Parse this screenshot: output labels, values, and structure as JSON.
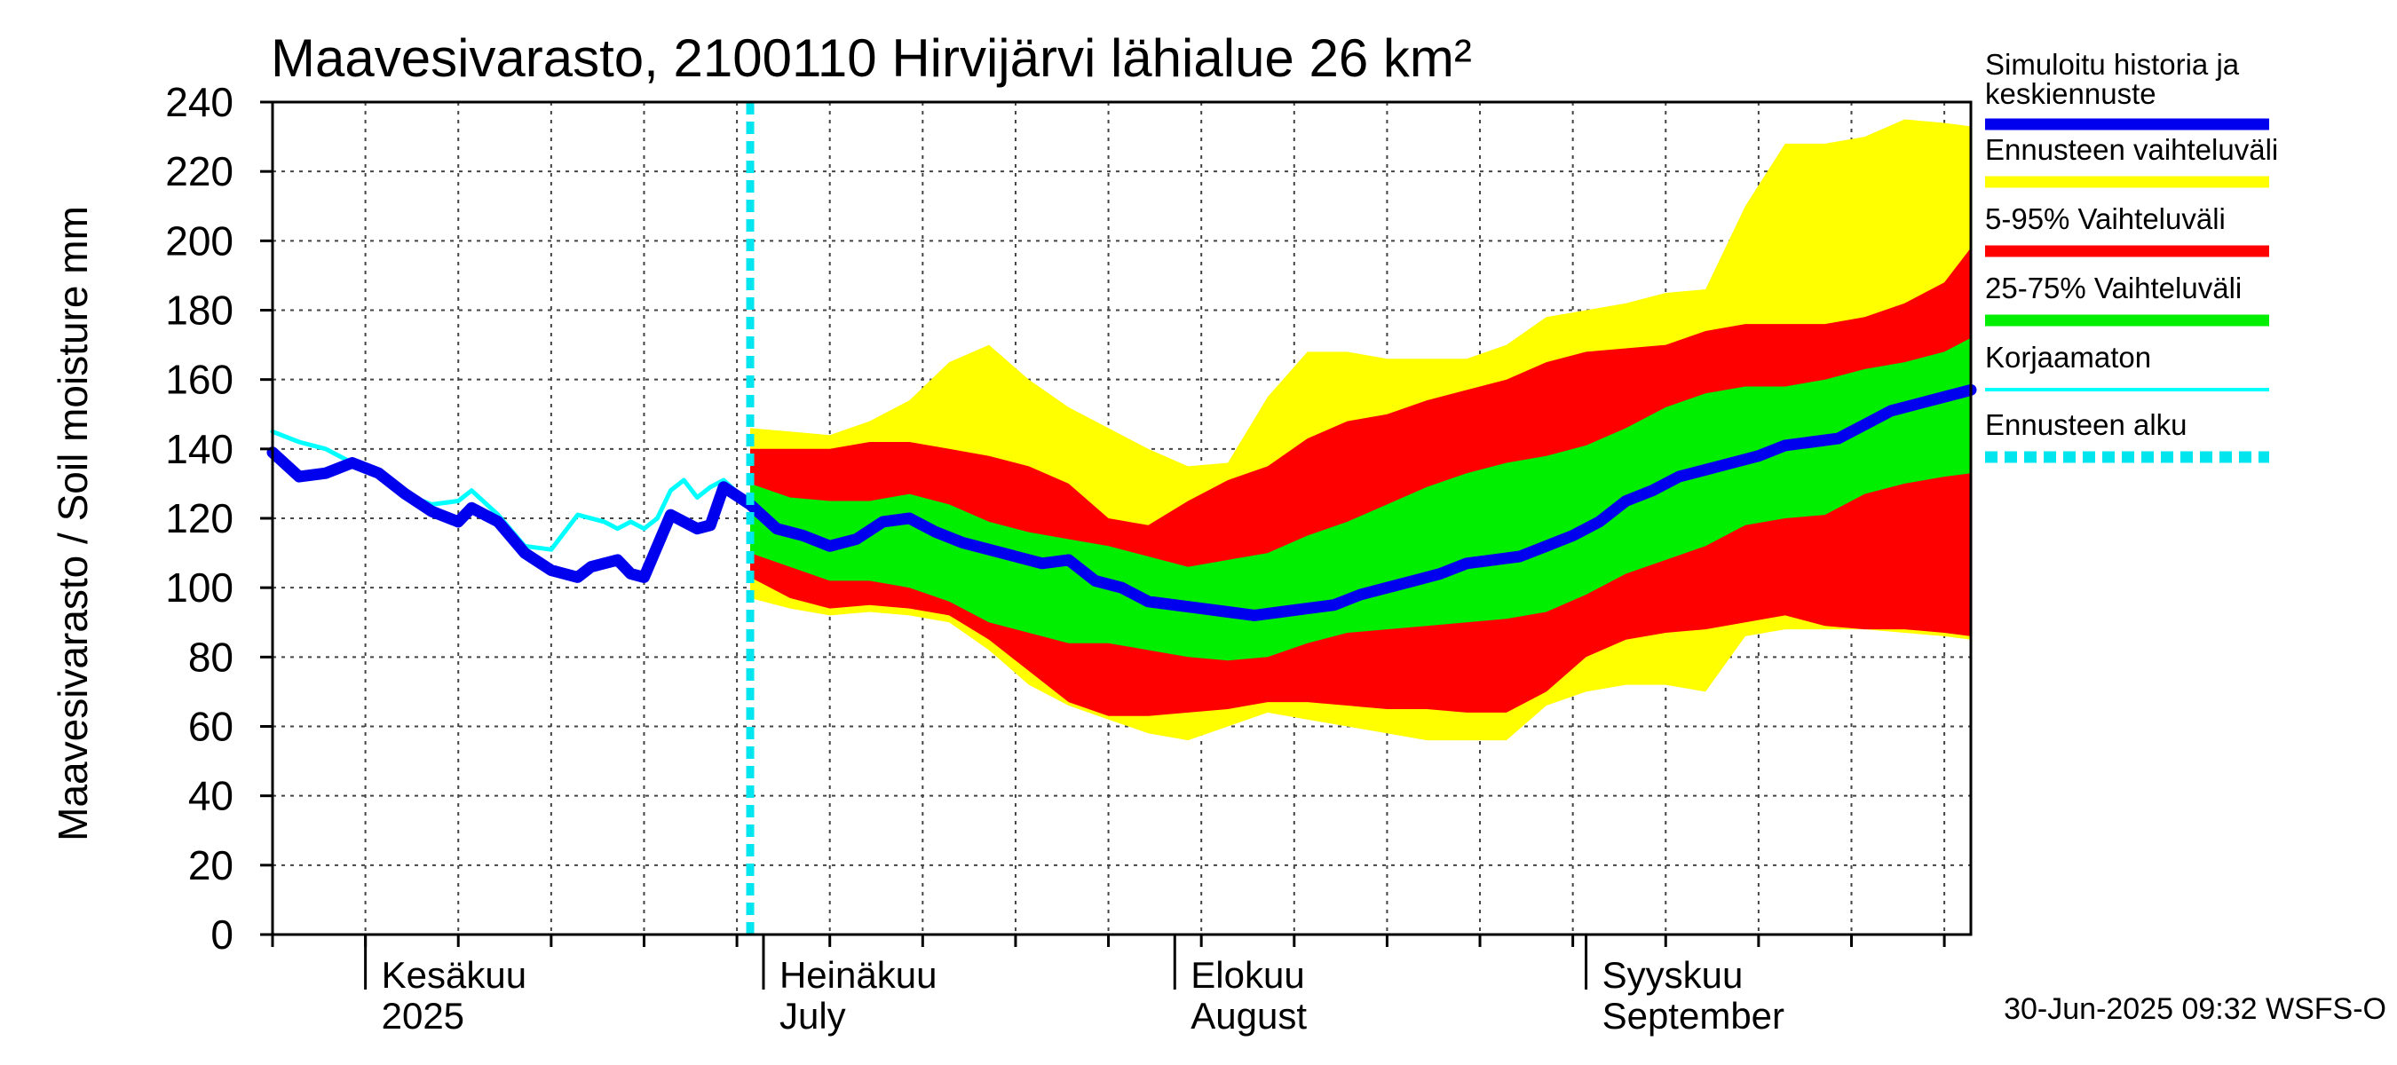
{
  "chart_data": {
    "type": "area",
    "title": "Maavesivarasto, 2100110 Hirvijärvi lähialue 26 km²",
    "ylabel": "Maavesivarasto / Soil moisture   mm",
    "ylim": [
      0,
      240
    ],
    "yticks": [
      0,
      20,
      40,
      60,
      80,
      100,
      120,
      140,
      160,
      180,
      200,
      220,
      240
    ],
    "xlim": [
      "2025-05-25",
      "2025-09-30"
    ],
    "grid": true,
    "forecast_start": "2025-06-30",
    "months": [
      {
        "date": "2025-06-01",
        "fi": "Kesäkuu",
        "en": "2025"
      },
      {
        "date": "2025-07-01",
        "fi": "Heinäkuu",
        "en": "July"
      },
      {
        "date": "2025-08-01",
        "fi": "Elokuu",
        "en": "August"
      },
      {
        "date": "2025-09-01",
        "fi": "Syyskuu",
        "en": "September"
      }
    ],
    "legend": [
      {
        "label": "Simuloitu historia ja keskiennuste",
        "color": "#0000ee",
        "style": "thick"
      },
      {
        "label": "Ennusteen vaihteluväli",
        "color": "#ffff00",
        "style": "thick"
      },
      {
        "label": "5-95% Vaihteluväli",
        "color": "#ff0000",
        "style": "thick"
      },
      {
        "label": "25-75% Vaihteluväli",
        "color": "#00ee00",
        "style": "thick"
      },
      {
        "label": "Korjaamaton",
        "color": "#00ffff",
        "style": "thin"
      },
      {
        "label": "Ennusteen alku",
        "color": "#00e5ee",
        "style": "dashed"
      }
    ],
    "series": [
      {
        "name": "Simuloitu historia ja keskiennuste",
        "color": "#0000ee",
        "points": [
          [
            "2025-05-25",
            139
          ],
          [
            "2025-05-27",
            132
          ],
          [
            "2025-05-29",
            133
          ],
          [
            "2025-05-31",
            136
          ],
          [
            "2025-06-02",
            133
          ],
          [
            "2025-06-04",
            127
          ],
          [
            "2025-06-06",
            122
          ],
          [
            "2025-06-08",
            119
          ],
          [
            "2025-06-09",
            123
          ],
          [
            "2025-06-11",
            119
          ],
          [
            "2025-06-13",
            110
          ],
          [
            "2025-06-15",
            105
          ],
          [
            "2025-06-17",
            103
          ],
          [
            "2025-06-18",
            106
          ],
          [
            "2025-06-20",
            108
          ],
          [
            "2025-06-21",
            104
          ],
          [
            "2025-06-22",
            103
          ],
          [
            "2025-06-24",
            121
          ],
          [
            "2025-06-26",
            117
          ],
          [
            "2025-06-27",
            118
          ],
          [
            "2025-06-28",
            129
          ],
          [
            "2025-06-30",
            124
          ],
          [
            "2025-07-02",
            117
          ],
          [
            "2025-07-04",
            115
          ],
          [
            "2025-07-06",
            112
          ],
          [
            "2025-07-08",
            114
          ],
          [
            "2025-07-10",
            119
          ],
          [
            "2025-07-12",
            120
          ],
          [
            "2025-07-14",
            116
          ],
          [
            "2025-07-16",
            113
          ],
          [
            "2025-07-18",
            111
          ],
          [
            "2025-07-20",
            109
          ],
          [
            "2025-07-22",
            107
          ],
          [
            "2025-07-24",
            108
          ],
          [
            "2025-07-26",
            102
          ],
          [
            "2025-07-28",
            100
          ],
          [
            "2025-07-30",
            96
          ],
          [
            "2025-08-01",
            95
          ],
          [
            "2025-08-03",
            94
          ],
          [
            "2025-08-05",
            93
          ],
          [
            "2025-08-07",
            92
          ],
          [
            "2025-08-09",
            93
          ],
          [
            "2025-08-11",
            94
          ],
          [
            "2025-08-13",
            95
          ],
          [
            "2025-08-15",
            98
          ],
          [
            "2025-08-17",
            100
          ],
          [
            "2025-08-19",
            102
          ],
          [
            "2025-08-21",
            104
          ],
          [
            "2025-08-23",
            107
          ],
          [
            "2025-08-25",
            108
          ],
          [
            "2025-08-27",
            109
          ],
          [
            "2025-08-29",
            112
          ],
          [
            "2025-08-31",
            115
          ],
          [
            "2025-09-02",
            119
          ],
          [
            "2025-09-04",
            125
          ],
          [
            "2025-09-06",
            128
          ],
          [
            "2025-09-08",
            132
          ],
          [
            "2025-09-10",
            134
          ],
          [
            "2025-09-12",
            136
          ],
          [
            "2025-09-14",
            138
          ],
          [
            "2025-09-16",
            141
          ],
          [
            "2025-09-18",
            142
          ],
          [
            "2025-09-20",
            143
          ],
          [
            "2025-09-22",
            147
          ],
          [
            "2025-09-24",
            151
          ],
          [
            "2025-09-26",
            153
          ],
          [
            "2025-09-28",
            155
          ],
          [
            "2025-09-30",
            157
          ]
        ]
      },
      {
        "name": "Korjaamaton",
        "color": "#00ffff",
        "points": [
          [
            "2025-05-25",
            145
          ],
          [
            "2025-05-27",
            142
          ],
          [
            "2025-05-29",
            140
          ],
          [
            "2025-05-31",
            136
          ],
          [
            "2025-06-02",
            133
          ],
          [
            "2025-06-04",
            127
          ],
          [
            "2025-06-06",
            124
          ],
          [
            "2025-06-08",
            125
          ],
          [
            "2025-06-09",
            128
          ],
          [
            "2025-06-11",
            121
          ],
          [
            "2025-06-13",
            112
          ],
          [
            "2025-06-15",
            111
          ],
          [
            "2025-06-17",
            121
          ],
          [
            "2025-06-19",
            119
          ],
          [
            "2025-06-20",
            117
          ],
          [
            "2025-06-21",
            119
          ],
          [
            "2025-06-22",
            117
          ],
          [
            "2025-06-23",
            120
          ],
          [
            "2025-06-24",
            128
          ],
          [
            "2025-06-25",
            131
          ],
          [
            "2025-06-26",
            126
          ],
          [
            "2025-06-27",
            129
          ],
          [
            "2025-06-28",
            131
          ],
          [
            "2025-06-30",
            124
          ]
        ]
      }
    ],
    "bands": [
      {
        "name": "Ennusteen vaihteluväli",
        "color": "#ffff00",
        "x": [
          "2025-06-30",
          "2025-07-03",
          "2025-07-06",
          "2025-07-09",
          "2025-07-12",
          "2025-07-15",
          "2025-07-18",
          "2025-07-21",
          "2025-07-24",
          "2025-07-27",
          "2025-07-30",
          "2025-08-02",
          "2025-08-05",
          "2025-08-08",
          "2025-08-11",
          "2025-08-14",
          "2025-08-17",
          "2025-08-20",
          "2025-08-23",
          "2025-08-26",
          "2025-08-29",
          "2025-09-01",
          "2025-09-04",
          "2025-09-07",
          "2025-09-10",
          "2025-09-13",
          "2025-09-16",
          "2025-09-19",
          "2025-09-22",
          "2025-09-25",
          "2025-09-28",
          "2025-09-30"
        ],
        "upper": [
          146,
          145,
          144,
          148,
          154,
          165,
          170,
          160,
          152,
          146,
          140,
          135,
          136,
          155,
          168,
          168,
          166,
          166,
          166,
          170,
          178,
          180,
          182,
          185,
          186,
          210,
          228,
          228,
          230,
          235,
          234,
          233
        ],
        "lower": [
          97,
          94,
          92,
          93,
          92,
          90,
          82,
          72,
          66,
          62,
          58,
          56,
          60,
          64,
          62,
          60,
          58,
          56,
          56,
          56,
          66,
          70,
          72,
          72,
          70,
          86,
          88,
          88,
          88,
          87,
          86,
          85
        ]
      },
      {
        "name": "5-95% Vaihteluväli",
        "color": "#ff0000",
        "x": [
          "2025-06-30",
          "2025-07-03",
          "2025-07-06",
          "2025-07-09",
          "2025-07-12",
          "2025-07-15",
          "2025-07-18",
          "2025-07-21",
          "2025-07-24",
          "2025-07-27",
          "2025-07-30",
          "2025-08-02",
          "2025-08-05",
          "2025-08-08",
          "2025-08-11",
          "2025-08-14",
          "2025-08-17",
          "2025-08-20",
          "2025-08-23",
          "2025-08-26",
          "2025-08-29",
          "2025-09-01",
          "2025-09-04",
          "2025-09-07",
          "2025-09-10",
          "2025-09-13",
          "2025-09-16",
          "2025-09-19",
          "2025-09-22",
          "2025-09-25",
          "2025-09-28",
          "2025-09-30"
        ],
        "upper": [
          140,
          140,
          140,
          142,
          142,
          140,
          138,
          135,
          130,
          120,
          118,
          125,
          131,
          135,
          143,
          148,
          150,
          154,
          157,
          160,
          165,
          168,
          169,
          170,
          174,
          176,
          176,
          176,
          178,
          182,
          188,
          198
        ],
        "lower": [
          103,
          97,
          94,
          95,
          94,
          92,
          85,
          76,
          67,
          63,
          63,
          64,
          65,
          67,
          67,
          66,
          65,
          65,
          64,
          64,
          70,
          80,
          85,
          87,
          88,
          90,
          92,
          89,
          88,
          88,
          87,
          86
        ]
      },
      {
        "name": "25-75% Vaihteluväli",
        "color": "#00ee00",
        "x": [
          "2025-06-30",
          "2025-07-03",
          "2025-07-06",
          "2025-07-09",
          "2025-07-12",
          "2025-07-15",
          "2025-07-18",
          "2025-07-21",
          "2025-07-24",
          "2025-07-27",
          "2025-07-30",
          "2025-08-02",
          "2025-08-05",
          "2025-08-08",
          "2025-08-11",
          "2025-08-14",
          "2025-08-17",
          "2025-08-20",
          "2025-08-23",
          "2025-08-26",
          "2025-08-29",
          "2025-09-01",
          "2025-09-04",
          "2025-09-07",
          "2025-09-10",
          "2025-09-13",
          "2025-09-16",
          "2025-09-19",
          "2025-09-22",
          "2025-09-25",
          "2025-09-28",
          "2025-09-30"
        ],
        "upper": [
          130,
          126,
          125,
          125,
          127,
          124,
          119,
          116,
          114,
          112,
          109,
          106,
          108,
          110,
          115,
          119,
          124,
          129,
          133,
          136,
          138,
          141,
          146,
          152,
          156,
          158,
          158,
          160,
          163,
          165,
          168,
          172
        ],
        "lower": [
          110,
          106,
          102,
          102,
          100,
          96,
          90,
          87,
          84,
          84,
          82,
          80,
          79,
          80,
          84,
          87,
          88,
          89,
          90,
          91,
          93,
          98,
          104,
          108,
          112,
          118,
          120,
          121,
          127,
          130,
          132,
          133
        ]
      }
    ]
  },
  "footer": {
    "timestamp": "30-Jun-2025 09:32 WSFS-O"
  }
}
